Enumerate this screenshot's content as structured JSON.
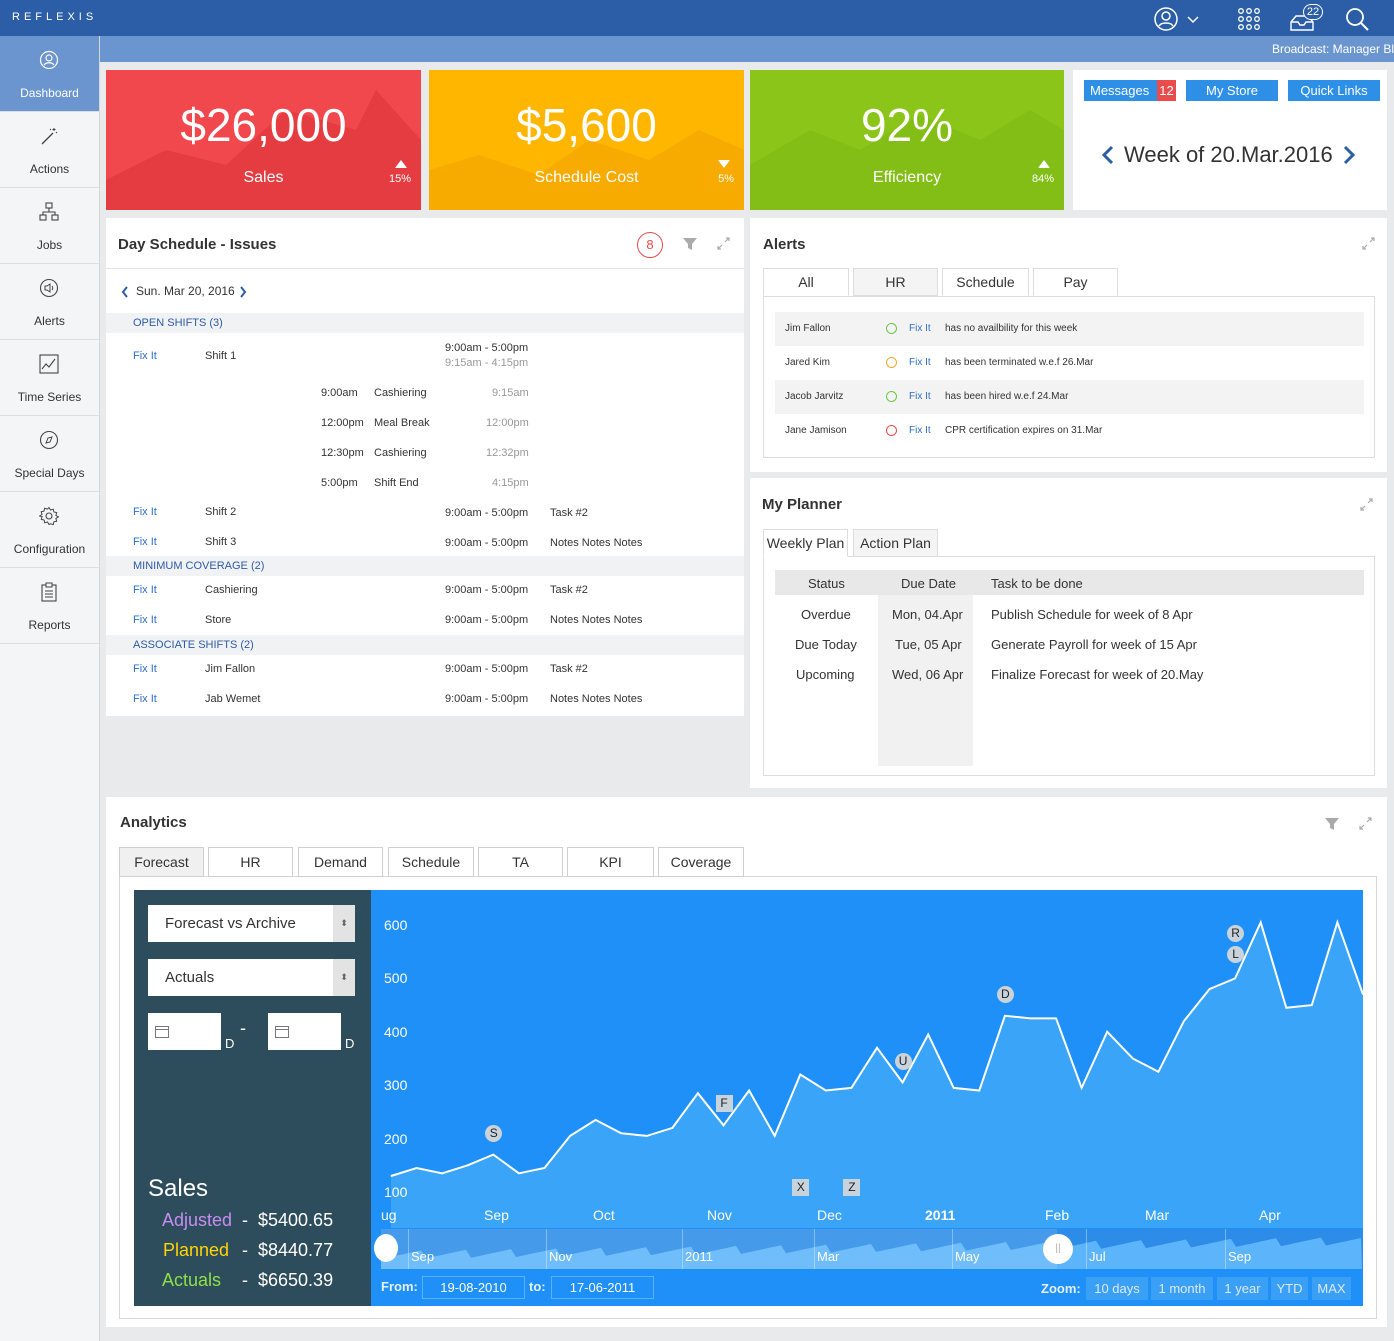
{
  "brand": "REFLEXIS",
  "topbar": {
    "notif_count": "22",
    "icons": [
      "user-icon",
      "chevron-down-icon",
      "apps-grid-icon",
      "inbox-icon",
      "search-icon"
    ]
  },
  "broadcast": "Broadcast: Manager Bl",
  "sidebar": {
    "items": [
      {
        "label": "Dashboard",
        "icon": "dashboard-icon"
      },
      {
        "label": "Actions",
        "icon": "wand-icon"
      },
      {
        "label": "Jobs",
        "icon": "org-chart-icon"
      },
      {
        "label": "Alerts",
        "icon": "speaker-icon"
      },
      {
        "label": "Time Series",
        "icon": "line-chart-icon"
      },
      {
        "label": "Special Days",
        "icon": "compass-icon"
      },
      {
        "label": "Configuration",
        "icon": "gear-icon"
      },
      {
        "label": "Reports",
        "icon": "clipboard-icon"
      }
    ]
  },
  "kpis": [
    {
      "value": "$26,000",
      "label": "Sales",
      "pct": "15%",
      "trend": "up",
      "color": "#f0484c"
    },
    {
      "value": "$5,600",
      "label": "Schedule Cost",
      "pct": "5%",
      "trend": "down",
      "color": "#ffb600"
    },
    {
      "value": "92%",
      "label": "Efficiency",
      "pct": "84%",
      "trend": "up",
      "color": "#8cc51a"
    }
  ],
  "quick": {
    "messages": "Messages",
    "messages_count": "12",
    "mystore": "My Store",
    "links": "Quick Links",
    "week": "Week of 20.Mar.2016"
  },
  "schedule": {
    "title": "Day Schedule - Issues",
    "issues": "8",
    "date": "Sun. Mar 20, 2016",
    "open_title": "OPEN SHIFTS (3)",
    "min_title": "MINIMUM COVERAGE (2)",
    "assoc_title": "ASSOCIATE SHIFTS (2)",
    "fix": "Fix It",
    "shift1": {
      "name": "Shift 1",
      "time1": "9:00am - 5:00pm",
      "time2": "9:15am - 4:15pm"
    },
    "details": [
      {
        "start": "9:00am",
        "task": "Cashiering",
        "actual": "9:15am"
      },
      {
        "start": "12:00pm",
        "task": "Meal Break",
        "actual": "12:00pm"
      },
      {
        "start": "12:30pm",
        "task": "Cashiering",
        "actual": "12:32pm"
      },
      {
        "start": "5:00pm",
        "task": "Shift End",
        "actual": "4:15pm"
      }
    ],
    "rows": [
      {
        "name": "Shift 2",
        "time": "9:00am - 5:00pm",
        "note": "Task #2"
      },
      {
        "name": "Shift 3",
        "time": "9:00am - 5:00pm",
        "note": "Notes Notes Notes"
      },
      {
        "name": "Cashiering",
        "time": "9:00am - 5:00pm",
        "note": "Task #2"
      },
      {
        "name": "Store",
        "time": "9:00am - 5:00pm",
        "note": "Notes Notes Notes"
      },
      {
        "name": "Jim Fallon",
        "time": "9:00am - 5:00pm",
        "note": "Task #2"
      },
      {
        "name": "Jab Wemet",
        "time": "9:00am - 5:00pm",
        "note": "Notes Notes Notes"
      }
    ]
  },
  "alerts": {
    "title": "Alerts",
    "tabs": [
      "All",
      "HR",
      "Schedule",
      "Pay"
    ],
    "fix": "Fix It",
    "rows": [
      {
        "name": "Jim Fallon",
        "msg": "has no availbility for this week",
        "status_color": "#6cc644"
      },
      {
        "name": "Jared Kim",
        "msg": "has been terminated w.e.f 26.Mar",
        "status_color": "#f5a623"
      },
      {
        "name": "Jacob Jarvitz",
        "msg": "has been hired w.e.f 24.Mar",
        "status_color": "#6cc644"
      },
      {
        "name": "Jane Jamison",
        "msg": "CPR certification expires on 31.Mar",
        "status_color": "#e94b4b"
      }
    ]
  },
  "planner": {
    "title": "My Planner",
    "tabs": [
      "Weekly Plan",
      "Action Plan"
    ],
    "headers": [
      "Status",
      "Due Date",
      "Task to be done"
    ],
    "rows": [
      {
        "status": "Overdue",
        "date": "Mon, 04.Apr",
        "task": "Publish Schedule for week of 8 Apr"
      },
      {
        "status": "Due Today",
        "date": "Tue, 05 Apr",
        "task": "Generate Payroll for week of 15 Apr"
      },
      {
        "status": "Upcoming",
        "date": "Wed, 06 Apr",
        "task": "Finalize Forecast for week of 20.May"
      }
    ]
  },
  "analytics": {
    "title": "Analytics",
    "tabs": [
      "Forecast",
      "HR",
      "Demand",
      "Schedule",
      "TA",
      "KPI",
      "Coverage"
    ],
    "select1": "Forecast vs Archive",
    "select2": "Actuals",
    "date_suffix": "D",
    "dash": "-",
    "sales_title": "Sales",
    "legend": [
      {
        "label": "Adjusted",
        "value": "$5400.65",
        "color": "#c78cf2"
      },
      {
        "label": "Planned",
        "value": "$8440.77",
        "color": "#ffd400"
      },
      {
        "label": "Actuals",
        "value": "$6650.39",
        "color": "#8ee04a"
      }
    ],
    "from_label": "From:",
    "from": "19-08-2010",
    "to_label": "to:",
    "to": "17-06-2011",
    "zoom_label": "Zoom:",
    "zoom": [
      "10 days",
      "1 month",
      "1 year",
      "YTD",
      "MAX"
    ]
  },
  "chart_data": {
    "type": "area",
    "yticks": [
      "600",
      "500",
      "400",
      "300",
      "200",
      "100"
    ],
    "ylim": [
      100,
      600
    ],
    "xticks": [
      "ug",
      "Sep",
      "Oct",
      "Nov",
      "Dec",
      "2011",
      "Feb",
      "Mar",
      "Apr"
    ],
    "navigator_labels": [
      "Sep",
      "Nov",
      "2011",
      "Mar",
      "May",
      "Jul",
      "Sep"
    ],
    "values": [
      130,
      145,
      135,
      150,
      170,
      135,
      145,
      205,
      235,
      210,
      205,
      220,
      285,
      225,
      290,
      205,
      320,
      290,
      295,
      370,
      305,
      395,
      295,
      290,
      430,
      425,
      425,
      295,
      400,
      350,
      325,
      420,
      480,
      500,
      605,
      445,
      450,
      605,
      470
    ],
    "flags": [
      {
        "label": "S",
        "shape": "circle",
        "index": 4
      },
      {
        "label": "F",
        "shape": "flag",
        "index": 13
      },
      {
        "label": "X",
        "shape": "flag",
        "index": 16
      },
      {
        "label": "Z",
        "shape": "flag",
        "index": 18
      },
      {
        "label": "U",
        "shape": "circle",
        "index": 20
      },
      {
        "label": "D",
        "shape": "circle",
        "index": 24
      },
      {
        "label": "L",
        "shape": "circle",
        "index": 33
      },
      {
        "label": "R",
        "shape": "circle",
        "index": 33
      }
    ]
  }
}
